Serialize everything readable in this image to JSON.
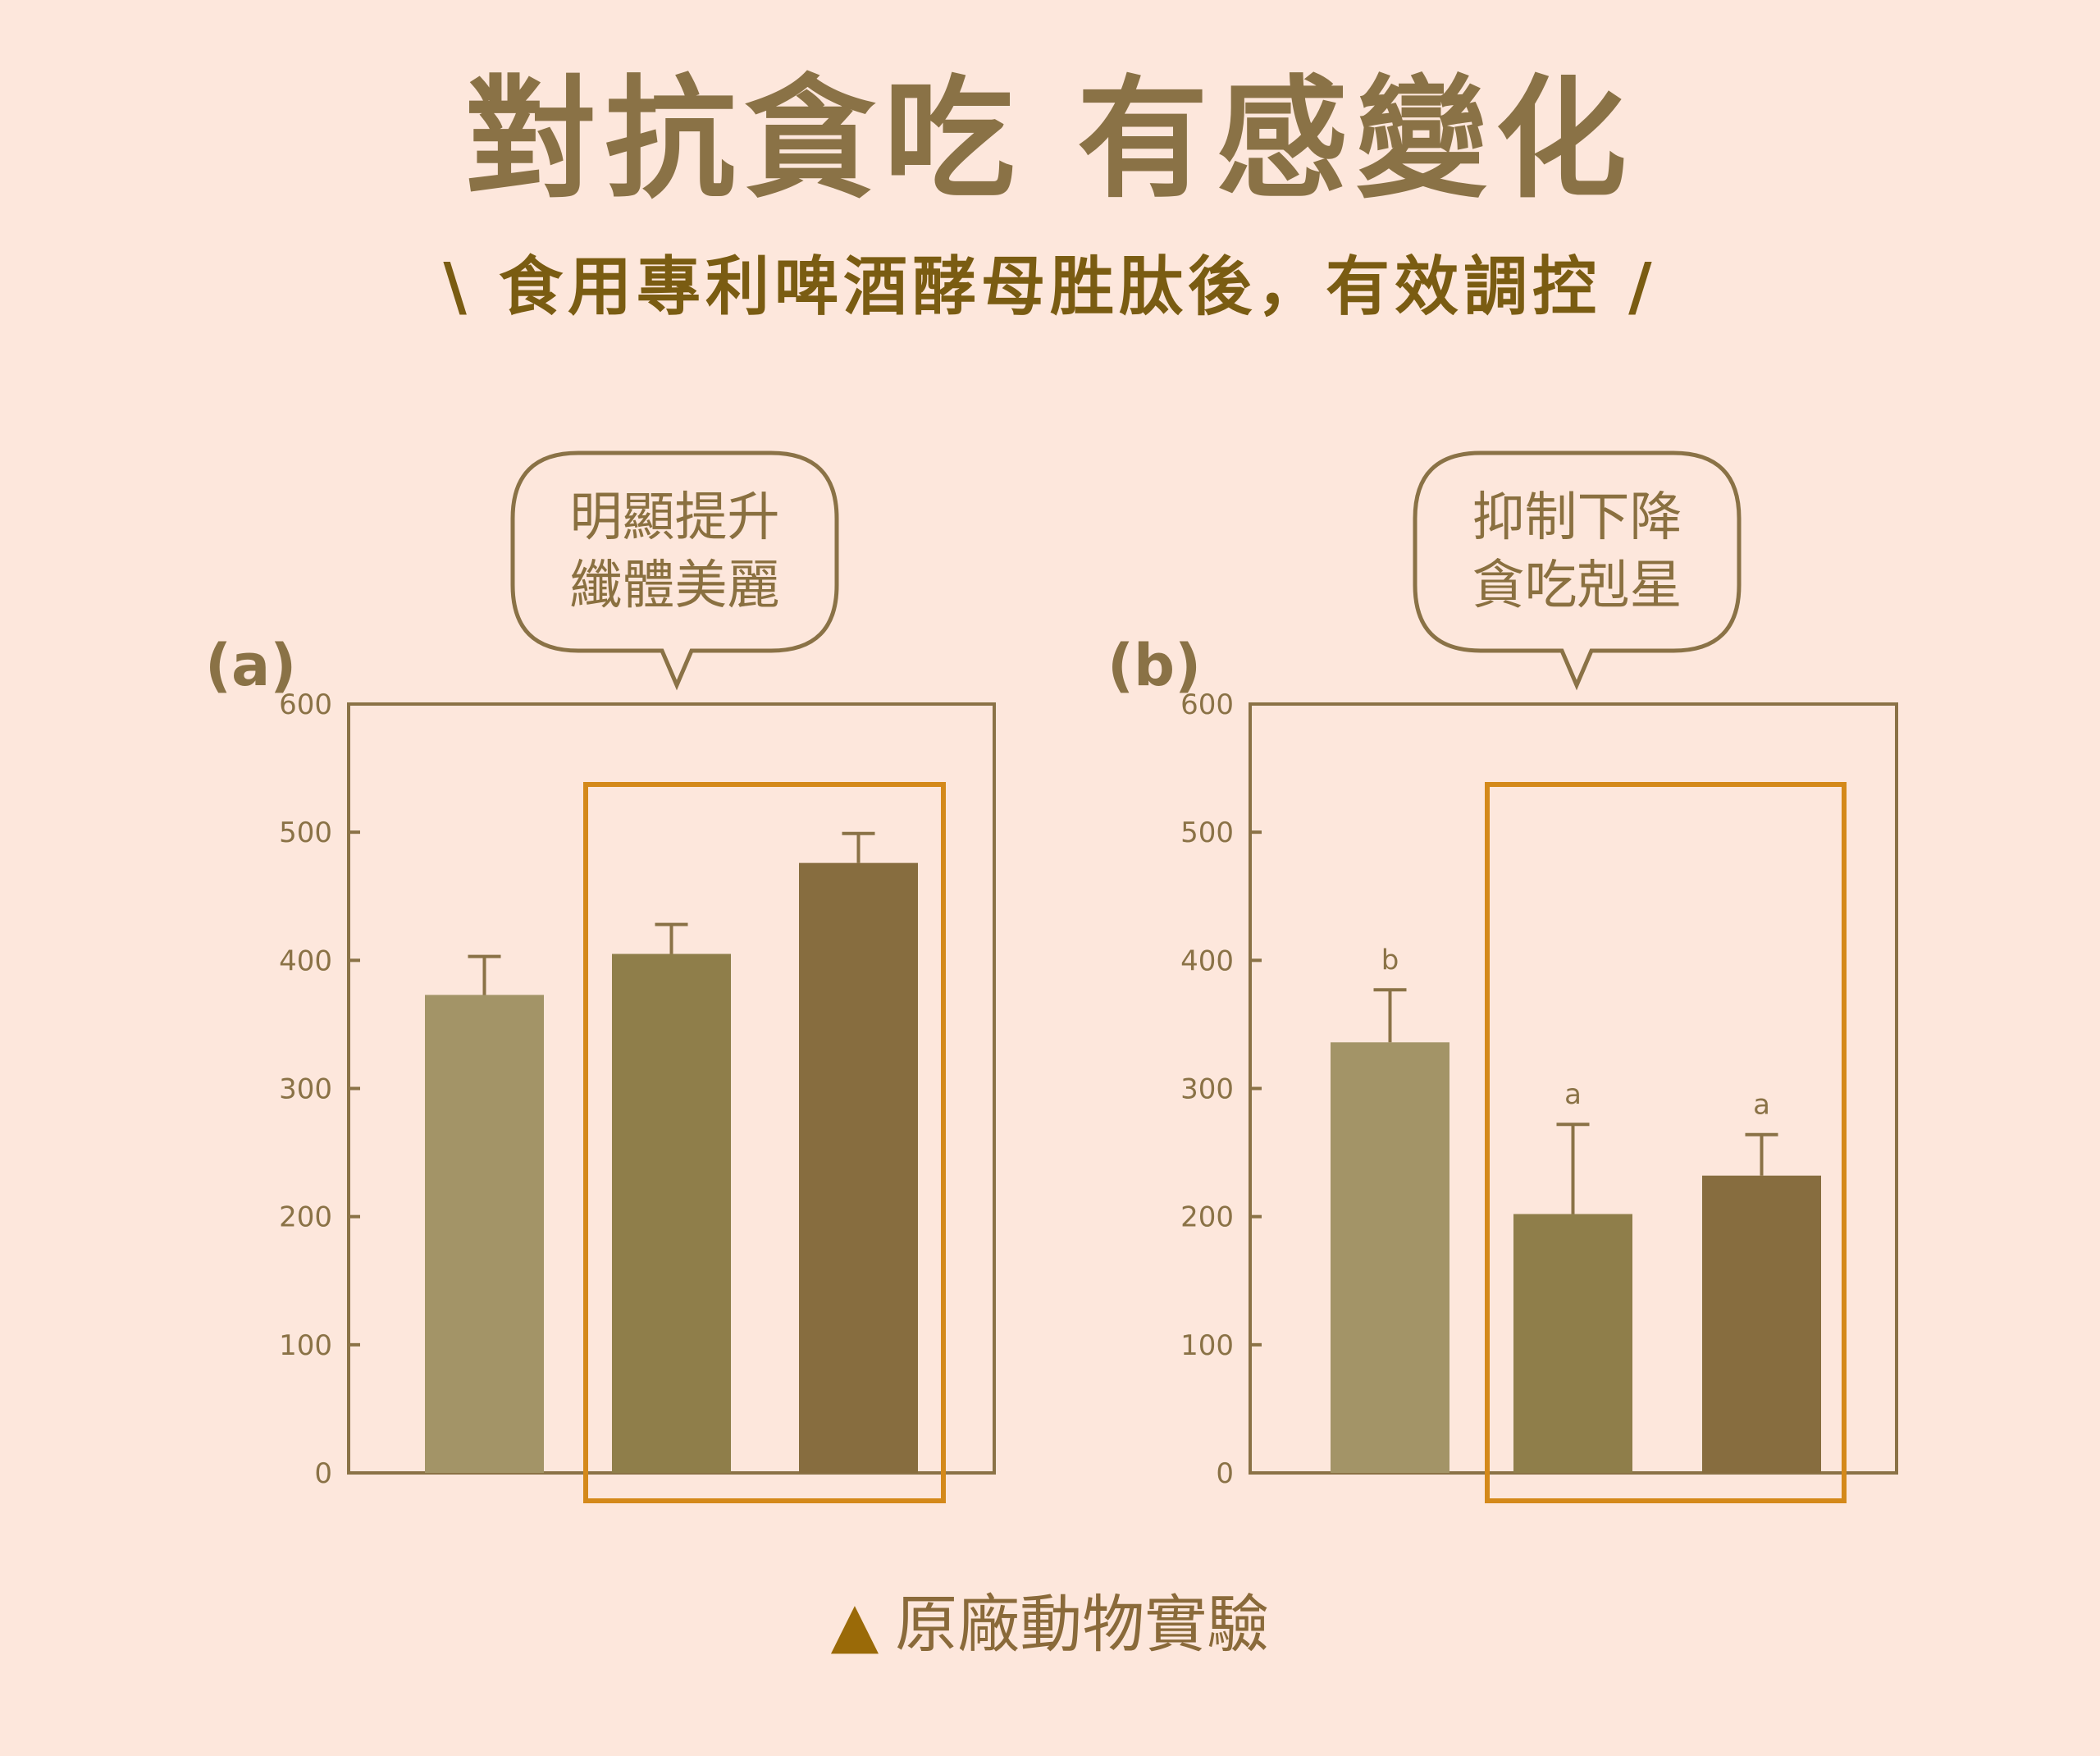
{
  "title": "對抗貪吃 有感變化",
  "subtitle": "\\ 食用專利啤酒酵母胜肽後，有效調控 /",
  "footer": {
    "marker": "▲",
    "text": "原廠動物實驗"
  },
  "colors": {
    "background": "#fde7dc",
    "frame": "#8a7246",
    "highlight": "#d4891a",
    "bar_light": "#a39467",
    "bar_mid": "#8f7e4a",
    "bar_dark": "#876d3f"
  },
  "chart_data": [
    {
      "type": "bar",
      "panel": "(a)",
      "callout": [
        "明顯提升",
        "纖體美麗"
      ],
      "yticks": [
        "600",
        "500",
        "400",
        "300",
        "200",
        "100",
        "0"
      ],
      "ylim": [
        0,
        600
      ],
      "values": [
        373,
        405,
        476
      ],
      "errors": [
        30,
        23,
        23
      ],
      "significance": [
        "",
        "",
        ""
      ],
      "highlight_bars": [
        1,
        2
      ]
    },
    {
      "type": "bar",
      "panel": "(b)",
      "callout": [
        "抑制下降",
        "貪吃剋星"
      ],
      "yticks": [
        "600",
        "500",
        "400",
        "300",
        "200",
        "100",
        "0"
      ],
      "ylim": [
        0,
        600
      ],
      "values": [
        336,
        202,
        232
      ],
      "errors": [
        41,
        70,
        32
      ],
      "significance": [
        "b",
        "a",
        "a"
      ],
      "highlight_bars": [
        1,
        2
      ]
    }
  ]
}
